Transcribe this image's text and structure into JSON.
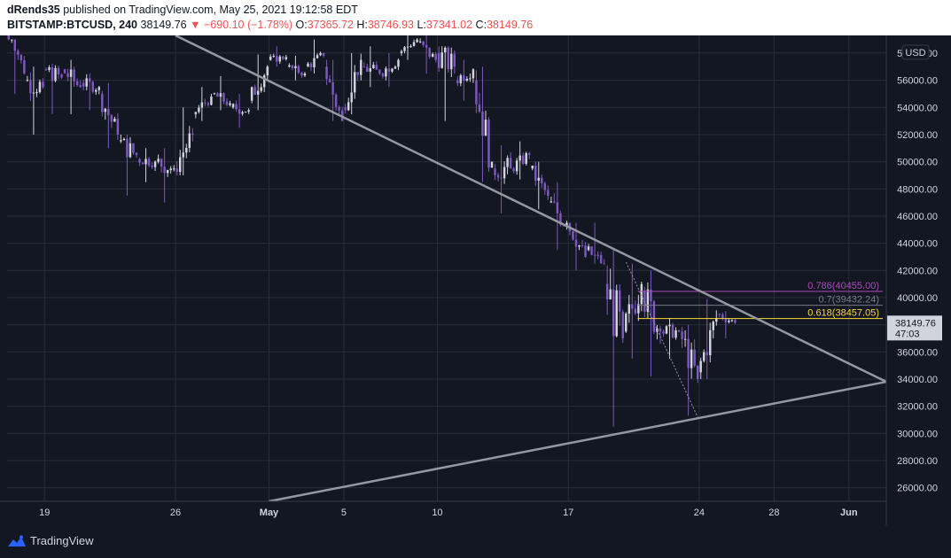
{
  "header": {
    "publisher": "dRends35",
    "published_text": "published on TradingView.com, May 25, 2021 19:12:58 EDT",
    "symbol": "BITSTAMP:BTCUSD, 240",
    "last": "38149.76",
    "change": "▼ −690.10 (−1.78%)",
    "o_label": "O:",
    "o": "37365.72",
    "h_label": "H:",
    "h": "38746.93",
    "l_label": "L:",
    "l": "37341.02",
    "c_label": "C:",
    "c": "38149.76"
  },
  "footer": {
    "brand": "TradingView"
  },
  "colors": {
    "background": "#131722",
    "grid": "#2a2e39",
    "bull": "#d1d4dc",
    "bear": "#7e57c2",
    "trendline": "#9598a1",
    "fib_0786": "#ab47bc",
    "fib_07": "#787b86",
    "fib_0618": "#fdd835",
    "price_tag": "#d1d4dc"
  },
  "chart_data": {
    "type": "candlestick",
    "currency_label": "USD",
    "y_range": [
      25000,
      59300
    ],
    "y_ticks": [
      26000,
      28000,
      30000,
      32000,
      34000,
      36000,
      38000,
      40000,
      42000,
      44000,
      46000,
      48000,
      50000,
      52000,
      54000,
      56000,
      58000
    ],
    "y_tick_labels": [
      "26000.00",
      "28000.00",
      "30000.00",
      "32000.00",
      "34000.00",
      "36000.00",
      "38000.00",
      "40000.00",
      "42000.00",
      "44000.00",
      "46000.00",
      "48000.00",
      "50000.00",
      "52000.00",
      "54000.00",
      "56000.00",
      "58000.00"
    ],
    "x_range_days": [
      "2021-04-17",
      "2021-06-03"
    ],
    "x_ticks": [
      {
        "date": "2021-04-19",
        "label": "19"
      },
      {
        "date": "2021-04-26",
        "label": "26"
      },
      {
        "date": "2021-05-01",
        "label": "May",
        "bold": true
      },
      {
        "date": "2021-05-05",
        "label": "5"
      },
      {
        "date": "2021-05-10",
        "label": "10"
      },
      {
        "date": "2021-05-17",
        "label": "17"
      },
      {
        "date": "2021-05-24",
        "label": "24"
      },
      {
        "date": "2021-05-28",
        "label": "28"
      },
      {
        "date": "2021-06-01",
        "label": "Jun",
        "bold": true
      }
    ],
    "candles_4h_close": [
      [
        "2021-04-17",
        61000,
        56500,
        59000,
        55000
      ],
      [
        "2021-04-18",
        56000,
        55500,
        57000,
        52000
      ],
      [
        "2021-04-19",
        56800,
        56200,
        57200,
        53500
      ],
      [
        "2021-04-20",
        56800,
        55500,
        57500,
        53500
      ],
      [
        "2021-04-21",
        55800,
        55500,
        56500,
        53800
      ],
      [
        "2021-04-22",
        55000,
        52000,
        55800,
        51000
      ],
      [
        "2021-04-23",
        51500,
        50500,
        52000,
        47500
      ],
      [
        "2021-04-24",
        50200,
        50000,
        51000,
        48500
      ],
      [
        "2021-04-25",
        50000,
        49500,
        51000,
        47000
      ],
      [
        "2021-04-26",
        49500,
        52000,
        54000,
        49000
      ],
      [
        "2021-04-27",
        53500,
        54800,
        55500,
        53000
      ],
      [
        "2021-04-28",
        55000,
        54300,
        56300,
        53800
      ],
      [
        "2021-04-29",
        54000,
        53800,
        55000,
        52500
      ],
      [
        "2021-04-30",
        54500,
        57000,
        57900,
        53800
      ],
      [
        "2021-05-01",
        57500,
        57700,
        58500,
        57000
      ],
      [
        "2021-05-02",
        57000,
        56500,
        57800,
        56000
      ],
      [
        "2021-05-03",
        57000,
        57800,
        59000,
        56500
      ],
      [
        "2021-05-04",
        57000,
        53000,
        57500,
        53000
      ],
      [
        "2021-05-05",
        54000,
        57500,
        58000,
        53500
      ],
      [
        "2021-05-06",
        57000,
        56500,
        58500,
        55500
      ],
      [
        "2021-05-07",
        56500,
        57500,
        58000,
        55500
      ],
      [
        "2021-05-08",
        58000,
        59000,
        59300,
        57500
      ],
      [
        "2021-05-09",
        58800,
        57500,
        59300,
        56500
      ],
      [
        "2021-05-10",
        58000,
        57000,
        58500,
        53000
      ],
      [
        "2021-05-11",
        56000,
        56800,
        57500,
        54500
      ],
      [
        "2021-05-12",
        56000,
        50000,
        57000,
        48500
      ],
      [
        "2021-05-13",
        49500,
        49500,
        51200,
        46200
      ],
      [
        "2021-05-14",
        49500,
        50500,
        51500,
        48700
      ],
      [
        "2021-05-15",
        49500,
        47500,
        50000,
        46500
      ],
      [
        "2021-05-16",
        47000,
        45500,
        48500,
        43500
      ],
      [
        "2021-05-17",
        45500,
        43000,
        45500,
        42000
      ],
      [
        "2021-05-18",
        43500,
        42500,
        45500,
        42500
      ],
      [
        "2021-05-19",
        41000,
        37000,
        43500,
        30500
      ],
      [
        "2021-05-20",
        37500,
        41000,
        42500,
        35500
      ],
      [
        "2021-05-21",
        40500,
        37500,
        42000,
        34200
      ],
      [
        "2021-05-22",
        37500,
        37500,
        38500,
        35500
      ],
      [
        "2021-05-23",
        37500,
        34000,
        38000,
        31300
      ],
      [
        "2021-05-24",
        34500,
        38500,
        39900,
        34000
      ],
      [
        "2021-05-25",
        38800,
        38149.76,
        39000,
        37000
      ]
    ],
    "trendlines": [
      {
        "from": [
          "2021-04-26",
          59300
        ],
        "to": [
          "2021-06-03",
          33800
        ]
      },
      {
        "from": [
          "2021-05-01",
          25000
        ],
        "to": [
          "2021-06-03",
          33800
        ]
      }
    ],
    "fib_levels": [
      {
        "label": "0.786(40455.00)",
        "value": 40455.0
      },
      {
        "label": "0.7(39432.24)",
        "value": 39432.24
      },
      {
        "label": "0.618(38457.05)",
        "value": 38457.05
      }
    ],
    "fib_anchor_high": [
      "2021-05-20",
      42600
    ],
    "fib_anchor_low": [
      "2021-05-23",
      31100
    ],
    "current_price": "38149.76",
    "countdown": "47:03"
  }
}
